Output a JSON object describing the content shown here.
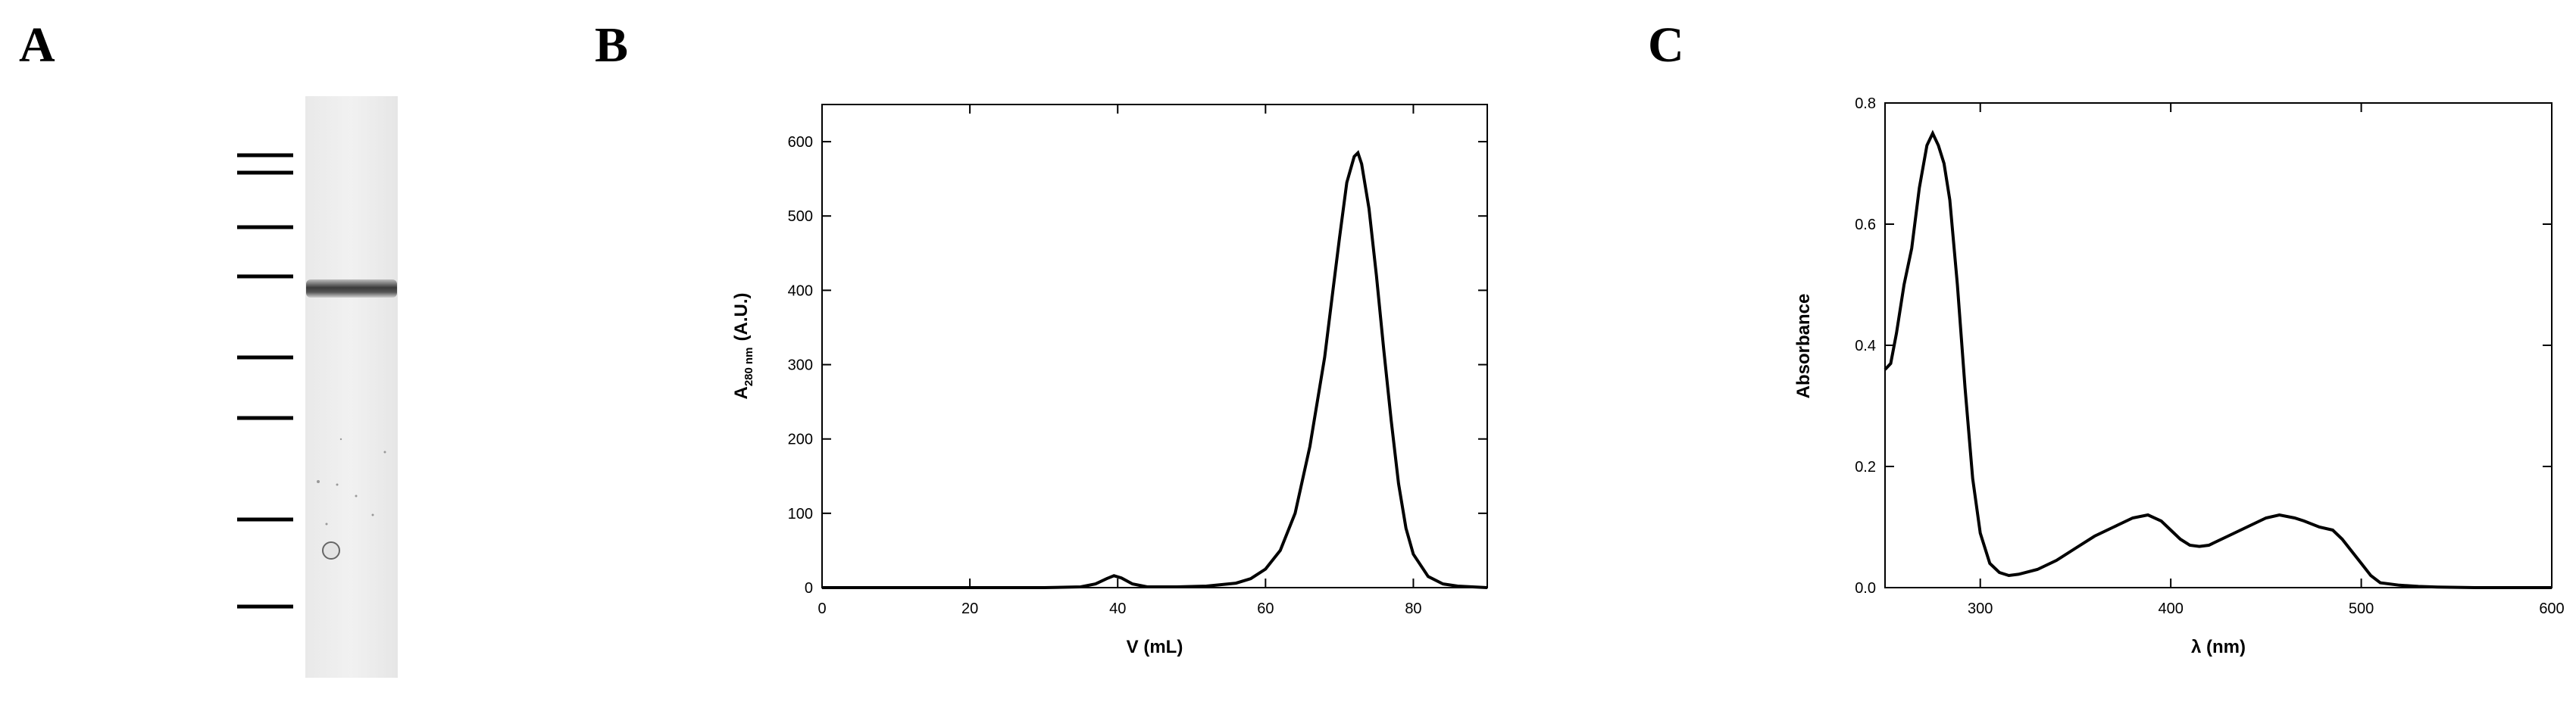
{
  "figure": {
    "panels": [
      {
        "letter": "A",
        "kind": "gel"
      },
      {
        "letter": "B",
        "kind": "chromatogram"
      },
      {
        "letter": "C",
        "kind": "spectrum"
      }
    ]
  },
  "gel": {
    "lane_label": "",
    "marker_count": 8,
    "sample_band_count": 1
  },
  "chart_data": [
    {
      "type": "line",
      "title": "",
      "xlabel": "V (mL)",
      "ylabel_main": "A",
      "ylabel_sub": "280 nm",
      "ylabel_unit": "(A.U.)",
      "xlim": [
        0,
        90
      ],
      "ylim": [
        0,
        650
      ],
      "xticks": [
        0,
        20,
        40,
        60,
        80
      ],
      "yticks": [
        0,
        100,
        200,
        300,
        400,
        500,
        600
      ],
      "grid": false,
      "series": [
        {
          "x": [
            0,
            10,
            20,
            30,
            35,
            37,
            38.5,
            39.5,
            40.5,
            42,
            44,
            48,
            52,
            56,
            58,
            60,
            62,
            64,
            66,
            68,
            69,
            70,
            71,
            72,
            72.5,
            73,
            74,
            75,
            76,
            77,
            78,
            79,
            80,
            82,
            84,
            86,
            88,
            90
          ],
          "y": [
            0,
            0,
            0,
            0,
            1,
            5,
            12,
            16,
            13,
            5,
            1,
            1,
            2,
            6,
            12,
            25,
            50,
            100,
            190,
            310,
            390,
            470,
            545,
            580,
            585,
            570,
            510,
            420,
            320,
            225,
            140,
            80,
            45,
            15,
            5,
            2,
            1,
            0
          ]
        }
      ]
    },
    {
      "type": "line",
      "title": "",
      "xlabel": "λ (nm)",
      "ylabel": "Absorbance",
      "xlim": [
        250,
        600
      ],
      "ylim": [
        0,
        0.8
      ],
      "xticks": [
        300,
        400,
        500,
        600
      ],
      "yticks": [
        0.0,
        0.2,
        0.4,
        0.6,
        0.8
      ],
      "grid": false,
      "series": [
        {
          "x": [
            250,
            253,
            256,
            260,
            264,
            268,
            272,
            275,
            278,
            281,
            284,
            288,
            292,
            296,
            300,
            305,
            310,
            315,
            320,
            330,
            340,
            350,
            360,
            370,
            380,
            388,
            395,
            400,
            405,
            410,
            415,
            420,
            430,
            440,
            450,
            457,
            465,
            470,
            478,
            485,
            490,
            495,
            500,
            505,
            510,
            520,
            530,
            540,
            560,
            580,
            600
          ],
          "y": [
            0.36,
            0.37,
            0.42,
            0.5,
            0.56,
            0.66,
            0.73,
            0.75,
            0.73,
            0.7,
            0.64,
            0.5,
            0.33,
            0.18,
            0.09,
            0.04,
            0.025,
            0.02,
            0.022,
            0.03,
            0.045,
            0.065,
            0.085,
            0.1,
            0.115,
            0.12,
            0.11,
            0.095,
            0.08,
            0.07,
            0.068,
            0.07,
            0.085,
            0.1,
            0.115,
            0.12,
            0.115,
            0.11,
            0.1,
            0.095,
            0.08,
            0.06,
            0.04,
            0.02,
            0.008,
            0.004,
            0.002,
            0.001,
            0,
            0,
            0
          ]
        }
      ]
    }
  ]
}
